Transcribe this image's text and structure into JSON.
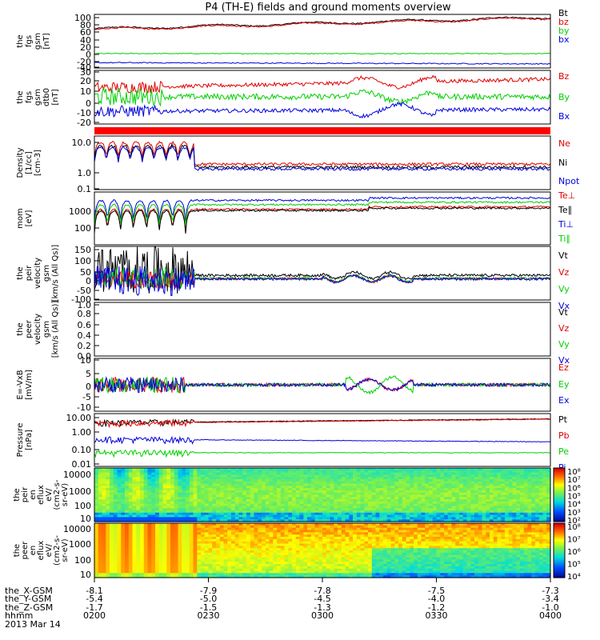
{
  "title": "P4 (TH-E) fields and ground moments overview",
  "date_label": "2013 Mar 14",
  "x_axis": {
    "rows": [
      {
        "label": "the_X-GSM",
        "values": [
          "-8.1",
          "-7.9",
          "-7.8",
          "-7.5",
          "-7.3"
        ]
      },
      {
        "label": "the_Y-GSM",
        "values": [
          "-5.4",
          "-5.0",
          "-4.5",
          "-4.0",
          "-3.4"
        ]
      },
      {
        "label": "the_Z-GSM",
        "values": [
          "-1.7",
          "-1.5",
          "-1.3",
          "-1.2",
          "-1.0"
        ]
      },
      {
        "label": "hhmm",
        "values": [
          "0200",
          "0230",
          "0300",
          "0330",
          "0400"
        ]
      }
    ]
  },
  "colors": {
    "black": "#000000",
    "red": "#e00000",
    "green": "#00d000",
    "blue": "#0000e0"
  },
  "chart_data": [
    {
      "type": "line",
      "ylabel": [
        "the",
        "fgs",
        "gsm",
        "[nT]"
      ],
      "ylim": [
        -30,
        100
      ],
      "yticks": [
        "100",
        "80",
        "60",
        "40",
        "20",
        "0",
        "-20",
        "-40"
      ],
      "x": [
        "0200",
        "0400"
      ],
      "series": [
        {
          "name": "Bt",
          "color": "#000000",
          "start": 65,
          "end": 93,
          "noise": 1.5
        },
        {
          "name": "bz",
          "color": "#e00000",
          "start": 63,
          "end": 91,
          "noise": 1.5
        },
        {
          "name": "by",
          "color": "#00d000",
          "start": 5,
          "end": 5,
          "noise": 1
        },
        {
          "name": "bx",
          "color": "#0000e0",
          "start": -17,
          "end": -20,
          "noise": 1.2
        }
      ]
    },
    {
      "type": "line",
      "ylabel": [
        "the",
        "fgs",
        "gsm",
        "dtb0",
        "[nT]"
      ],
      "ylim": [
        -25,
        30
      ],
      "yticks": [
        "30",
        "20",
        "10",
        "0",
        "-10",
        "-20"
      ],
      "series": [
        {
          "name": "Bz",
          "color": "#e00000",
          "start": 12,
          "end": 21,
          "noise": 2
        },
        {
          "name": "By",
          "color": "#00d000",
          "start": 3,
          "end": 3,
          "noise": 3
        },
        {
          "name": "Bx",
          "color": "#0000e0",
          "start": -12,
          "end": -10,
          "noise": 2
        }
      ]
    },
    {
      "type": "bar",
      "note": "solid red band",
      "color": "#ff0000"
    },
    {
      "type": "line",
      "ylabel": [
        "Density",
        "[1/cc]",
        "[cm-3]"
      ],
      "scale": "log",
      "ylim": [
        0.1,
        30
      ],
      "yticks": [
        "10.0",
        "1.0",
        "0.1"
      ],
      "series": [
        {
          "name": "Ne",
          "color": "#e00000",
          "level": 1.5
        },
        {
          "name": "Ni",
          "color": "#000000",
          "level": 1.1
        },
        {
          "name": "Npot",
          "color": "#0000e0",
          "level": 0.9
        }
      ]
    },
    {
      "type": "line",
      "ylabel": [
        "mom",
        "[eV]"
      ],
      "scale": "log",
      "ylim": [
        30,
        10000
      ],
      "yticks": [
        "1000",
        "100"
      ],
      "series": [
        {
          "name": "Te⊥",
          "color": "#e00000",
          "level": 1500
        },
        {
          "name": "Te∥",
          "color": "#000000",
          "level": 1300
        },
        {
          "name": "Ti⊥",
          "color": "#0000e0",
          "level": 4000
        },
        {
          "name": "Ti∥",
          "color": "#00d000",
          "level": 2500
        }
      ]
    },
    {
      "type": "line",
      "ylabel": [
        "the",
        "peir",
        "velocity",
        "gsm",
        "[km/s (All Qs)]"
      ],
      "ylim": [
        -100,
        150
      ],
      "yticks": [
        "150",
        "100",
        "50",
        "0",
        "-50",
        "-100"
      ],
      "series": [
        {
          "name": "Vt",
          "color": "#000000"
        },
        {
          "name": "Vz",
          "color": "#e00000"
        },
        {
          "name": "Vy",
          "color": "#00d000"
        },
        {
          "name": "Vx",
          "color": "#0000e0"
        }
      ]
    },
    {
      "type": "line",
      "ylabel": [
        "the",
        "peer",
        "velocity",
        "gsm",
        "[km/s (All Qs)]"
      ],
      "ylim": [
        0,
        1.0
      ],
      "yticks": [
        "1.0",
        "0.8",
        "0.6",
        "0.4",
        "0.2",
        "0.0"
      ],
      "series": [
        {
          "name": "Vt",
          "color": "#000000"
        },
        {
          "name": "Vz",
          "color": "#e00000"
        },
        {
          "name": "Vy",
          "color": "#00d000"
        },
        {
          "name": "Vx",
          "color": "#0000e0"
        }
      ]
    },
    {
      "type": "line",
      "ylabel": [
        "E=-VxB",
        "[mV/m]"
      ],
      "ylim": [
        -10,
        10
      ],
      "yticks": [
        "10",
        "5",
        "0",
        "-5",
        "-10"
      ],
      "series": [
        {
          "name": "Ez",
          "color": "#e00000"
        },
        {
          "name": "Ey",
          "color": "#00d000"
        },
        {
          "name": "Ex",
          "color": "#0000e0"
        }
      ]
    },
    {
      "type": "line",
      "ylabel": [
        "Pressure",
        "[nPa]"
      ],
      "scale": "log",
      "ylim": [
        0.01,
        10
      ],
      "yticks": [
        "10.00",
        "1.00",
        "0.10",
        "0.01"
      ],
      "series": [
        {
          "name": "Pt",
          "color": "#000000",
          "start": 3.0,
          "end": 5.0
        },
        {
          "name": "Pb",
          "color": "#e00000",
          "start": 2.8,
          "end": 4.8
        },
        {
          "name": "Pe",
          "color": "#00d000",
          "start": 0.06,
          "end": 0.06
        },
        {
          "name": "Pi",
          "color": "#0000e0",
          "start": 0.35,
          "end": 0.25
        }
      ]
    },
    {
      "type": "heatmap",
      "ylabel": [
        "the",
        "peir",
        "en",
        "eflux",
        "eV/",
        "(cm2-s-",
        "sr-eV)"
      ],
      "scale": "log",
      "ylim": [
        7,
        20000
      ],
      "yticks": [
        "10000",
        "1000",
        "100",
        "10"
      ],
      "colorbar_ticks": [
        "10⁸",
        "10⁷",
        "10⁶",
        "10⁵",
        "10⁴",
        "10³",
        "10²"
      ]
    },
    {
      "type": "heatmap",
      "ylabel": [
        "the",
        "peer",
        "en",
        "eflux",
        "eV/",
        "(cm2-s-",
        "sr-eV)"
      ],
      "scale": "log",
      "ylim": [
        7,
        20000
      ],
      "yticks": [
        "10000",
        "1000",
        "100",
        "10"
      ],
      "colorbar_ticks": [
        "10⁸",
        "10⁷",
        "10⁶",
        "10⁵",
        "10⁴"
      ]
    }
  ]
}
